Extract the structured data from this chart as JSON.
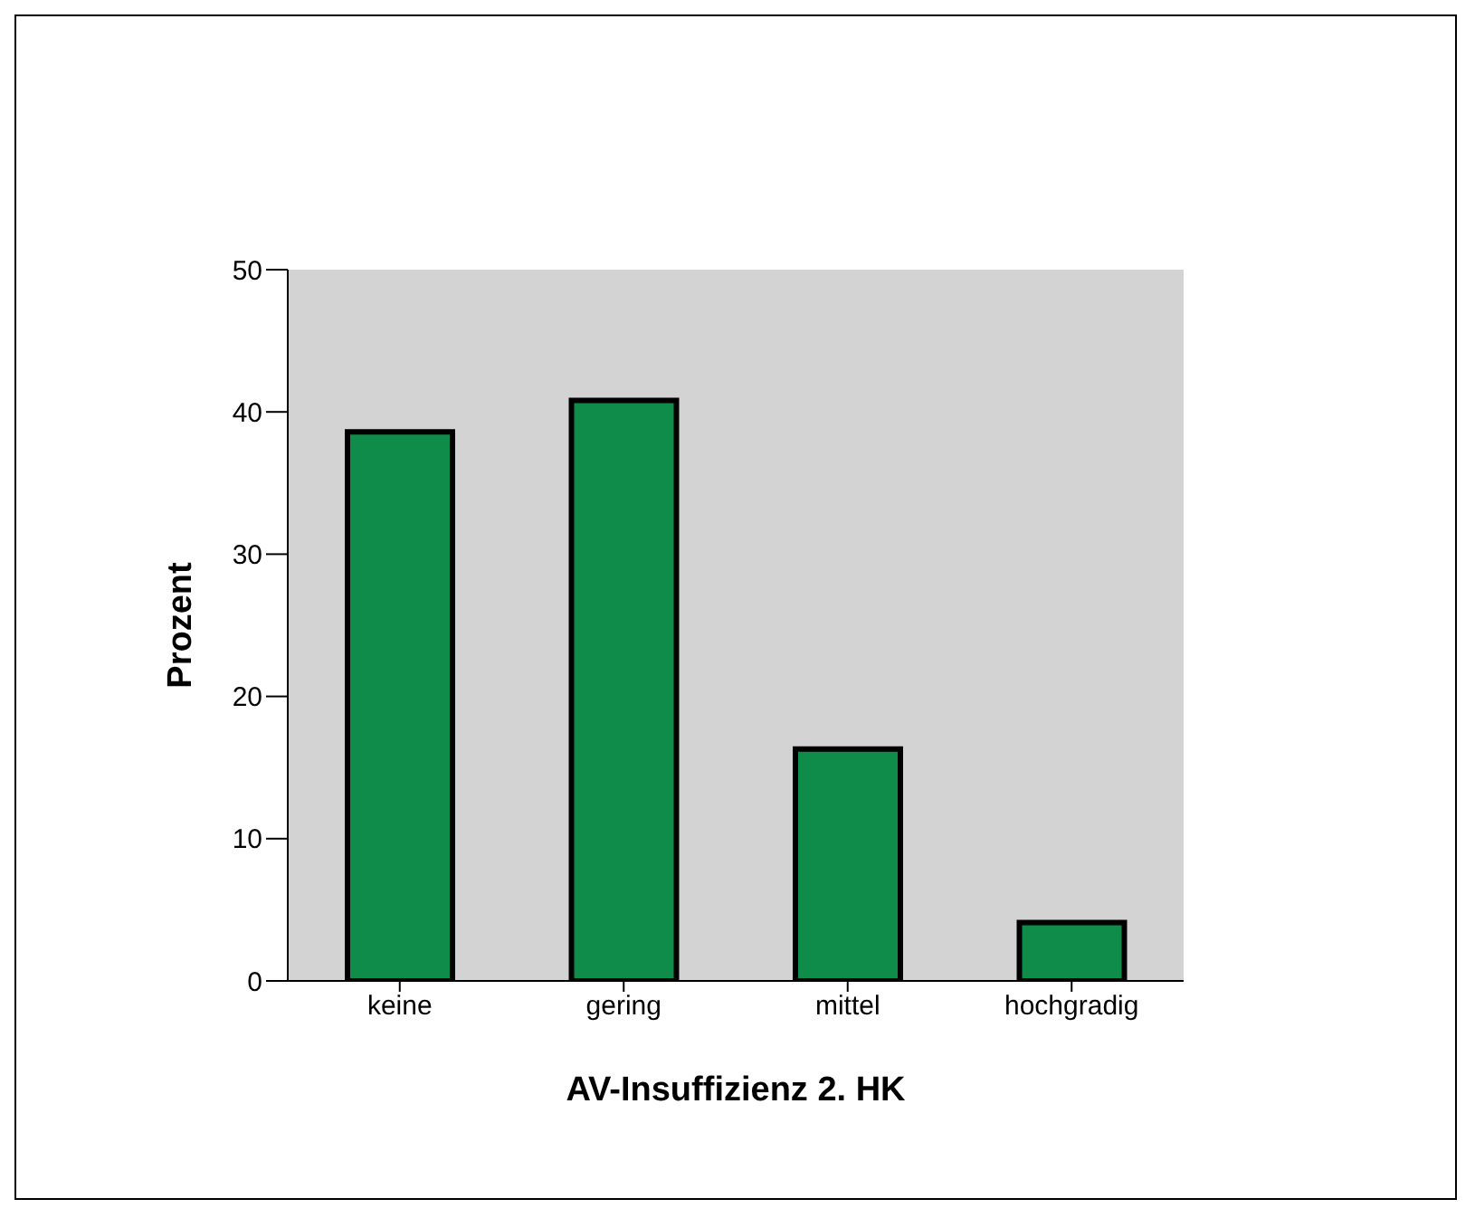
{
  "chart_data": {
    "type": "bar",
    "xlabel": "AV-Insuffizienz 2. HK",
    "ylabel": "Prozent",
    "categories": [
      "keine",
      "gering",
      "mittel",
      "hochgradig"
    ],
    "values": [
      38.6,
      40.8,
      16.3,
      4.1
    ],
    "color": "#0f8c4a",
    "ylim": [
      0,
      50
    ],
    "yticks": [
      0,
      10,
      20,
      30,
      40,
      50
    ],
    "grid": false
  }
}
